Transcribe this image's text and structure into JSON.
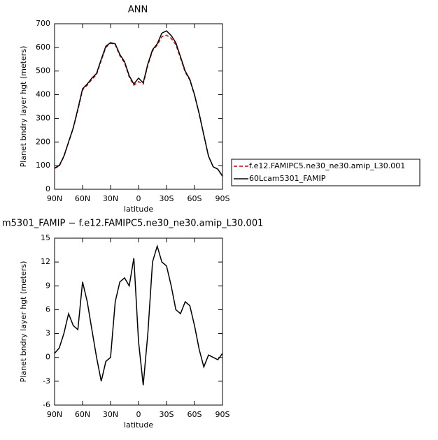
{
  "chart_data": [
    {
      "type": "line",
      "title": "ANN",
      "xlabel": "latitude",
      "ylabel": "Planet bndry layer hgt (meters)",
      "x": [
        90,
        85,
        80,
        75,
        70,
        65,
        60,
        55,
        50,
        45,
        40,
        35,
        30,
        25,
        20,
        15,
        10,
        5,
        0,
        -5,
        -10,
        -15,
        -20,
        -25,
        -30,
        -35,
        -40,
        -45,
        -50,
        -55,
        -60,
        -65,
        -70,
        -75,
        -80,
        -85,
        -90
      ],
      "xlim": [
        90,
        -90
      ],
      "xticks": [
        {
          "value": 90,
          "label": "90N"
        },
        {
          "value": 60,
          "label": "60N"
        },
        {
          "value": 30,
          "label": "30N"
        },
        0,
        {
          "value": -30,
          "label": "30S"
        },
        {
          "value": -60,
          "label": "60S"
        },
        {
          "value": -90,
          "label": "90S"
        }
      ],
      "ylim": [
        0,
        700
      ],
      "yticks": [
        0,
        100,
        200,
        300,
        400,
        500,
        600,
        700
      ],
      "legend": "right",
      "series": [
        {
          "name": "f.e12.FAMIPC5.ne30_ne30.amip_L30.001",
          "color": "#cc0000",
          "dashed": true,
          "values": [
            88,
            98,
            138,
            198,
            258,
            335,
            420,
            440,
            465,
            485,
            545,
            600,
            618,
            612,
            565,
            535,
            475,
            440,
            455,
            445,
            525,
            585,
            610,
            645,
            652,
            638,
            612,
            555,
            495,
            462,
            398,
            318,
            228,
            140,
            95,
            85,
            57
          ]
        },
        {
          "name": "60Lcam5301_FAMIP",
          "color": "#000000",
          "dashed": false,
          "values": [
            90,
            100,
            140,
            200,
            260,
            340,
            425,
            445,
            470,
            490,
            550,
            605,
            620,
            615,
            570,
            540,
            480,
            445,
            470,
            450,
            530,
            590,
            615,
            660,
            670,
            650,
            620,
            560,
            500,
            465,
            400,
            320,
            230,
            140,
            95,
            85,
            55
          ]
        }
      ]
    },
    {
      "type": "line",
      "title": "m5301_FAMIP − f.e12.FAMIPC5.ne30_ne30.amip_L30.001",
      "xlabel": "latitude",
      "ylabel": "Planet bndry layer hgt (meters)",
      "x": [
        90,
        85,
        80,
        75,
        70,
        65,
        60,
        55,
        50,
        45,
        40,
        35,
        30,
        25,
        20,
        15,
        10,
        5,
        0,
        -5,
        -10,
        -15,
        -20,
        -25,
        -30,
        -35,
        -40,
        -45,
        -50,
        -55,
        -60,
        -65,
        -70,
        -75,
        -80,
        -85,
        -90
      ],
      "xlim": [
        90,
        -90
      ],
      "xticks": [
        {
          "value": 90,
          "label": "90N"
        },
        {
          "value": 60,
          "label": "60N"
        },
        {
          "value": 30,
          "label": "30N"
        },
        0,
        {
          "value": -30,
          "label": "30S"
        },
        {
          "value": -60,
          "label": "60S"
        },
        {
          "value": -90,
          "label": "90S"
        }
      ],
      "ylim": [
        -6,
        15
      ],
      "yticks": [
        -6,
        -3,
        0,
        3,
        6,
        9,
        12,
        15
      ],
      "color": "#000000",
      "values": [
        0.5,
        1.2,
        3,
        5.5,
        4,
        3.5,
        9.5,
        7,
        3.5,
        0,
        -3,
        -0.5,
        0,
        7,
        9.5,
        10,
        9,
        12.5,
        2,
        -3.5,
        3,
        12,
        14,
        12,
        11.5,
        9,
        6,
        5.5,
        7,
        6.5,
        4,
        1,
        -1.2,
        0.3,
        0,
        -0.3,
        0.5
      ]
    }
  ]
}
